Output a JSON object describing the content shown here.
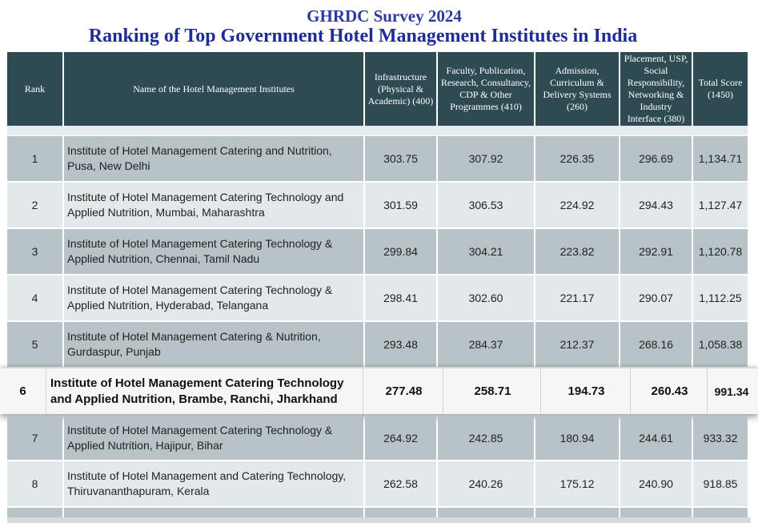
{
  "survey_title": "GHRDC Survey 2024",
  "ranking_title": "Ranking of Top Government Hotel Management Institutes in India",
  "columns": {
    "rank": "Rank",
    "name": "Name of the Hotel Management Institutes",
    "infra": "Infrastructure (Physical & Academic) (400)",
    "faculty": "Faculty, Publication, Research, Consultancy, CDP & Other Programmes (410)",
    "admission": "Admission, Curriculum & Delivery Systems (260)",
    "placement": "Placement, USP, Social Responsibility, Networking & Industry Interface (380)",
    "total": "Total Score (1450)"
  },
  "rows": [
    {
      "rank": "1",
      "name": "Institute of Hotel Management Catering and Nutrition, Pusa, New Delhi",
      "infra": "303.75",
      "faculty": "307.92",
      "admission": "226.35",
      "placement": "296.69",
      "total": "1,134.71"
    },
    {
      "rank": "2",
      "name": "Institute of Hotel Management Catering Technology and Applied Nutrition, Mumbai, Maharashtra",
      "infra": "301.59",
      "faculty": "306.53",
      "admission": "224.92",
      "placement": "294.43",
      "total": "1,127.47"
    },
    {
      "rank": "3",
      "name": "Institute of Hotel Management Catering Technology & Applied Nutrition, Chennai, Tamil Nadu",
      "infra": "299.84",
      "faculty": "304.21",
      "admission": "223.82",
      "placement": "292.91",
      "total": "1,120.78"
    },
    {
      "rank": "4",
      "name": "Institute of Hotel Management Catering Technology & Applied Nutrition, Hyderabad, Telangana",
      "infra": "298.41",
      "faculty": "302.60",
      "admission": "221.17",
      "placement": "290.07",
      "total": "1,112.25"
    },
    {
      "rank": "5",
      "name": "Institute of Hotel Management Catering & Nutrition, Gurdaspur, Punjab",
      "infra": "293.48",
      "faculty": "284.37",
      "admission": "212.37",
      "placement": "268.16",
      "total": "1,058.38"
    },
    {
      "rank": "6",
      "name": "Institute of Hotel Management Catering Technology and Applied Nutrition, Brambe, Ranchi, Jharkhand",
      "infra": "277.48",
      "faculty": "258.71",
      "admission": "194.73",
      "placement": "260.43",
      "total": "991.34"
    },
    {
      "rank": "7",
      "name": "Institute of Hotel Management Catering Technology & Applied Nutrition, Hajipur, Bihar",
      "infra": "264.92",
      "faculty": "242.85",
      "admission": "180.94",
      "placement": "244.61",
      "total": "933.32"
    },
    {
      "rank": "8",
      "name": "Institute of Hotel Management and Catering Technology, Thiruvananthapuram, Kerala",
      "infra": "262.58",
      "faculty": "240.26",
      "admission": "175.12",
      "placement": "240.90",
      "total": "918.85"
    }
  ]
}
